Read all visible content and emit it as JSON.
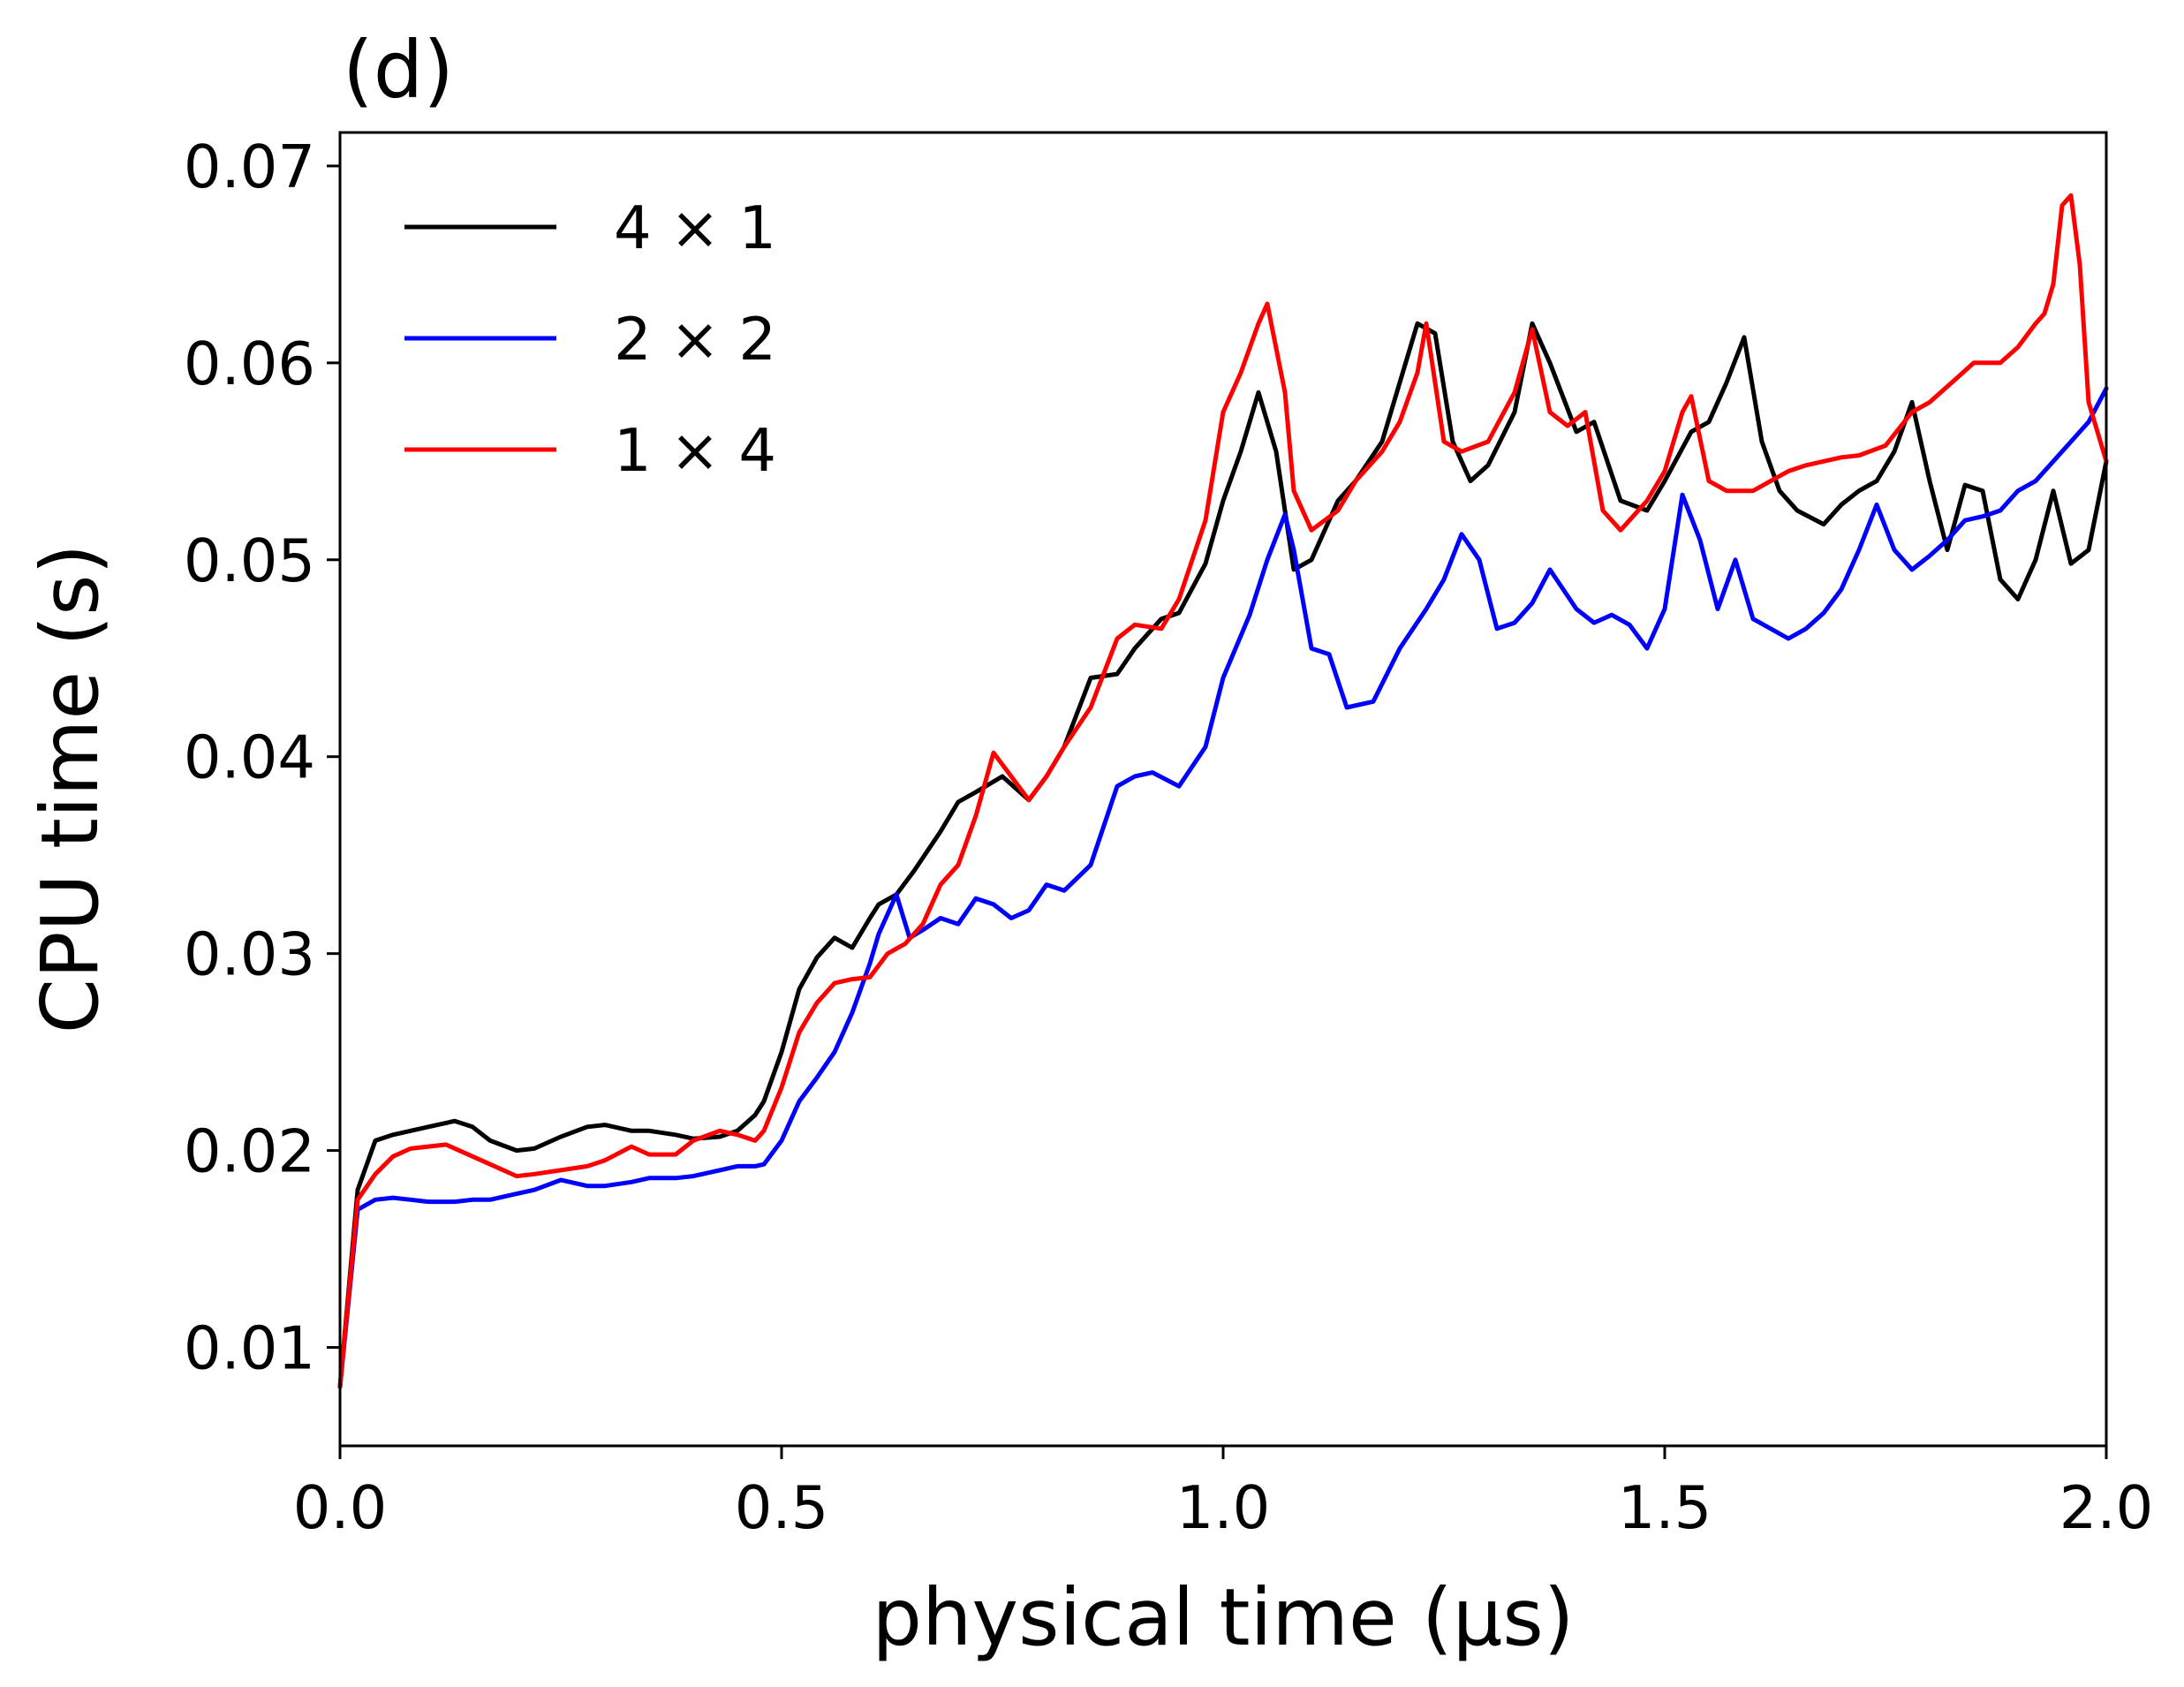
{
  "chart_data": {
    "type": "line",
    "title": "(d)",
    "xlabel": "physical time (μs)",
    "ylabel": "CPU time (s)",
    "xlim": [
      0.0,
      2.0
    ],
    "ylim": [
      0.005,
      0.0717
    ],
    "xticks": [
      0.0,
      0.5,
      1.0,
      1.5,
      2.0
    ],
    "xtick_labels": [
      "0.0",
      "0.5",
      "1.0",
      "1.5",
      "2.0"
    ],
    "yticks": [
      0.01,
      0.02,
      0.03,
      0.04,
      0.05,
      0.06,
      0.07
    ],
    "ytick_labels": [
      "0.01",
      "0.02",
      "0.03",
      "0.04",
      "0.05",
      "0.06",
      "0.07"
    ],
    "grid": false,
    "legend_position": "top-left",
    "series": [
      {
        "name": "4 × 1",
        "color": "#000000",
        "x": [
          0.0,
          0.02,
          0.04,
          0.06,
          0.08,
          0.1,
          0.13,
          0.15,
          0.17,
          0.2,
          0.22,
          0.25,
          0.28,
          0.3,
          0.33,
          0.35,
          0.38,
          0.4,
          0.43,
          0.45,
          0.47,
          0.48,
          0.5,
          0.52,
          0.54,
          0.56,
          0.58,
          0.6,
          0.61,
          0.63,
          0.65,
          0.68,
          0.7,
          0.72,
          0.75,
          0.78,
          0.8,
          0.82,
          0.85,
          0.88,
          0.9,
          0.93,
          0.95,
          0.98,
          1.0,
          1.02,
          1.04,
          1.06,
          1.08,
          1.1,
          1.13,
          1.15,
          1.18,
          1.2,
          1.22,
          1.24,
          1.26,
          1.28,
          1.3,
          1.33,
          1.35,
          1.37,
          1.4,
          1.42,
          1.45,
          1.48,
          1.5,
          1.53,
          1.55,
          1.57,
          1.59,
          1.61,
          1.63,
          1.65,
          1.68,
          1.7,
          1.72,
          1.74,
          1.76,
          1.78,
          1.8,
          1.82,
          1.84,
          1.86,
          1.88,
          1.9,
          1.92,
          1.94,
          1.96,
          1.98,
          2.0
        ],
        "y": [
          0.008,
          0.018,
          0.0205,
          0.0208,
          0.021,
          0.0212,
          0.0215,
          0.0212,
          0.0205,
          0.02,
          0.0201,
          0.0207,
          0.0212,
          0.0213,
          0.021,
          0.021,
          0.0208,
          0.0206,
          0.0207,
          0.021,
          0.0218,
          0.0225,
          0.025,
          0.0282,
          0.0298,
          0.0308,
          0.0303,
          0.0318,
          0.0325,
          0.033,
          0.0342,
          0.0362,
          0.0377,
          0.0382,
          0.039,
          0.0378,
          0.039,
          0.0405,
          0.044,
          0.0442,
          0.0455,
          0.047,
          0.0473,
          0.0498,
          0.053,
          0.0555,
          0.0585,
          0.0555,
          0.0495,
          0.05,
          0.053,
          0.054,
          0.056,
          0.059,
          0.062,
          0.0615,
          0.056,
          0.054,
          0.0548,
          0.0575,
          0.062,
          0.06,
          0.0565,
          0.057,
          0.053,
          0.0525,
          0.054,
          0.0565,
          0.057,
          0.059,
          0.0613,
          0.056,
          0.0535,
          0.0525,
          0.0518,
          0.0528,
          0.0535,
          0.054,
          0.0555,
          0.058,
          0.054,
          0.0505,
          0.0538,
          0.0535,
          0.049,
          0.048,
          0.05,
          0.0535,
          0.0498,
          0.0505,
          0.055
        ]
      },
      {
        "name": "2 × 2",
        "color": "#0000ff",
        "x": [
          0.0,
          0.02,
          0.04,
          0.06,
          0.08,
          0.1,
          0.13,
          0.15,
          0.17,
          0.2,
          0.22,
          0.25,
          0.28,
          0.3,
          0.33,
          0.35,
          0.38,
          0.4,
          0.43,
          0.45,
          0.47,
          0.48,
          0.5,
          0.52,
          0.54,
          0.56,
          0.58,
          0.6,
          0.61,
          0.62,
          0.63,
          0.645,
          0.66,
          0.68,
          0.7,
          0.72,
          0.74,
          0.76,
          0.78,
          0.8,
          0.82,
          0.85,
          0.88,
          0.9,
          0.92,
          0.95,
          0.98,
          1.0,
          1.03,
          1.05,
          1.07,
          1.08,
          1.1,
          1.12,
          1.14,
          1.17,
          1.2,
          1.23,
          1.25,
          1.27,
          1.29,
          1.31,
          1.33,
          1.35,
          1.37,
          1.4,
          1.42,
          1.44,
          1.46,
          1.48,
          1.5,
          1.52,
          1.54,
          1.56,
          1.58,
          1.6,
          1.62,
          1.64,
          1.66,
          1.68,
          1.7,
          1.72,
          1.74,
          1.76,
          1.78,
          1.8,
          1.82,
          1.84,
          1.86,
          1.88,
          1.9,
          1.92,
          1.94,
          1.96,
          1.98,
          2.0
        ],
        "y": [
          0.008,
          0.017,
          0.0175,
          0.0176,
          0.0175,
          0.0174,
          0.0174,
          0.0175,
          0.0175,
          0.0178,
          0.018,
          0.0185,
          0.0182,
          0.0182,
          0.0184,
          0.0186,
          0.0186,
          0.0187,
          0.019,
          0.0192,
          0.0192,
          0.0193,
          0.0205,
          0.0225,
          0.0237,
          0.025,
          0.027,
          0.0295,
          0.031,
          0.032,
          0.033,
          0.0308,
          0.0312,
          0.0318,
          0.0315,
          0.0328,
          0.0325,
          0.0318,
          0.0322,
          0.0335,
          0.0332,
          0.0345,
          0.0385,
          0.039,
          0.0392,
          0.0385,
          0.0405,
          0.044,
          0.0472,
          0.05,
          0.0523,
          0.0505,
          0.0455,
          0.0452,
          0.0425,
          0.0428,
          0.0455,
          0.0475,
          0.049,
          0.0513,
          0.05,
          0.0465,
          0.0468,
          0.0478,
          0.0495,
          0.0475,
          0.0468,
          0.0472,
          0.0467,
          0.0455,
          0.0475,
          0.0533,
          0.051,
          0.0475,
          0.05,
          0.047,
          0.0465,
          0.046,
          0.0465,
          0.0473,
          0.0485,
          0.0505,
          0.0528,
          0.0505,
          0.0495,
          0.0502,
          0.051,
          0.052,
          0.0522,
          0.0525,
          0.0535,
          0.054,
          0.055,
          0.056,
          0.057,
          0.0587
        ]
      },
      {
        "name": "1 × 4",
        "color": "#ff0000",
        "x": [
          0.0,
          0.02,
          0.04,
          0.06,
          0.08,
          0.1,
          0.12,
          0.14,
          0.17,
          0.2,
          0.22,
          0.25,
          0.28,
          0.3,
          0.33,
          0.35,
          0.38,
          0.4,
          0.43,
          0.45,
          0.47,
          0.48,
          0.5,
          0.52,
          0.54,
          0.56,
          0.58,
          0.6,
          0.62,
          0.64,
          0.66,
          0.68,
          0.7,
          0.72,
          0.74,
          0.76,
          0.78,
          0.8,
          0.82,
          0.85,
          0.88,
          0.9,
          0.93,
          0.95,
          0.98,
          1.0,
          1.02,
          1.04,
          1.05,
          1.07,
          1.08,
          1.1,
          1.13,
          1.15,
          1.18,
          1.2,
          1.22,
          1.23,
          1.25,
          1.27,
          1.3,
          1.33,
          1.35,
          1.37,
          1.39,
          1.41,
          1.43,
          1.45,
          1.48,
          1.5,
          1.52,
          1.53,
          1.55,
          1.57,
          1.6,
          1.62,
          1.64,
          1.66,
          1.68,
          1.7,
          1.72,
          1.75,
          1.78,
          1.8,
          1.83,
          1.85,
          1.88,
          1.9,
          1.92,
          1.93,
          1.94,
          1.95,
          1.96,
          1.97,
          1.98,
          2.0
        ],
        "y": [
          0.008,
          0.0175,
          0.0188,
          0.0197,
          0.0201,
          0.0202,
          0.0203,
          0.0199,
          0.0193,
          0.0187,
          0.0188,
          0.019,
          0.0192,
          0.0195,
          0.0202,
          0.0198,
          0.0198,
          0.0205,
          0.021,
          0.0208,
          0.0205,
          0.021,
          0.0232,
          0.026,
          0.0275,
          0.0285,
          0.0287,
          0.0288,
          0.03,
          0.0305,
          0.0315,
          0.0335,
          0.0345,
          0.037,
          0.0402,
          0.039,
          0.0378,
          0.039,
          0.0405,
          0.0425,
          0.046,
          0.0467,
          0.0465,
          0.048,
          0.052,
          0.0575,
          0.0595,
          0.062,
          0.063,
          0.0585,
          0.0535,
          0.0515,
          0.0525,
          0.054,
          0.0555,
          0.057,
          0.0595,
          0.062,
          0.056,
          0.0555,
          0.056,
          0.0585,
          0.0617,
          0.0575,
          0.0568,
          0.0575,
          0.0525,
          0.0515,
          0.053,
          0.0545,
          0.0575,
          0.0583,
          0.054,
          0.0535,
          0.0535,
          0.054,
          0.0545,
          0.0548,
          0.055,
          0.0552,
          0.0553,
          0.0558,
          0.0575,
          0.058,
          0.0592,
          0.06,
          0.06,
          0.0608,
          0.062,
          0.0625,
          0.064,
          0.068,
          0.0685,
          0.065,
          0.058,
          0.055
        ]
      }
    ]
  }
}
